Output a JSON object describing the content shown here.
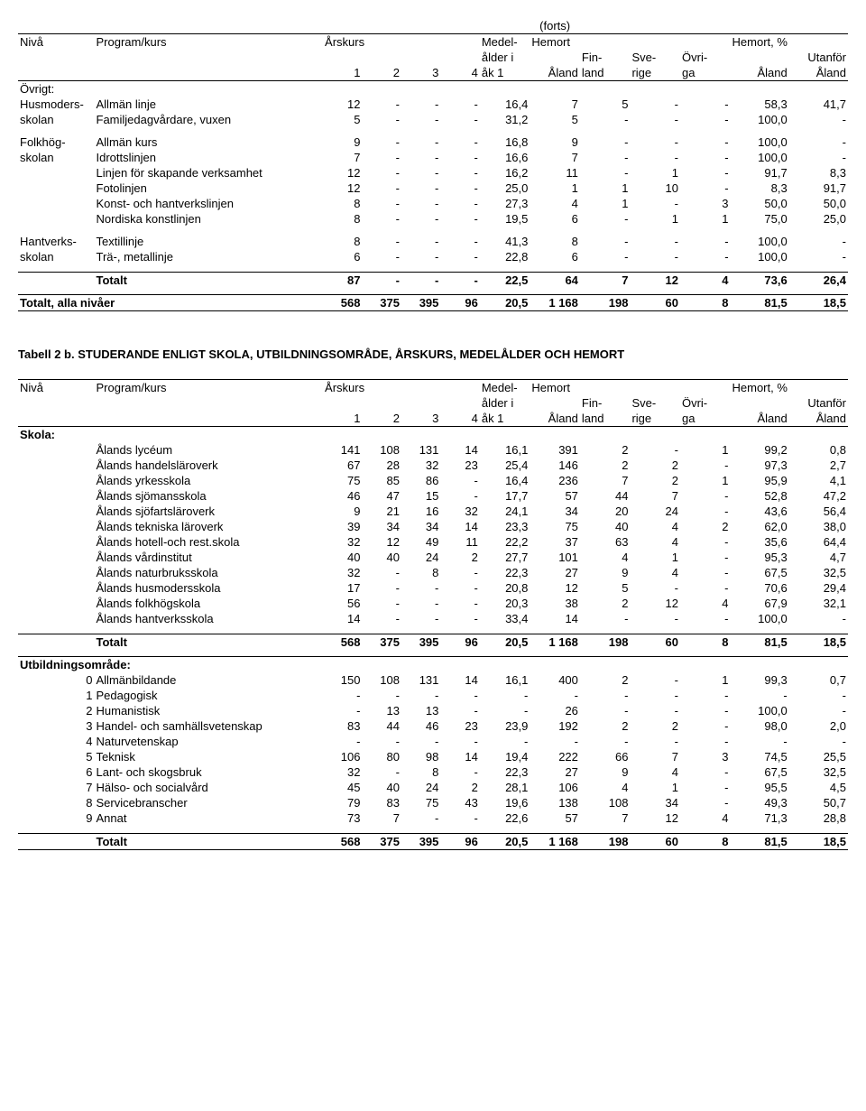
{
  "forts": "(forts)",
  "hdr": {
    "niva": "Nivå",
    "program": "Program/kurs",
    "arskurs": "Årskurs",
    "medel": "Medel-",
    "hemort": "Hemort",
    "hemortpct": "Hemort, %",
    "alderi": "ålder i",
    "fin": "Fin-",
    "sve": "Sve-",
    "ovri": "Övri-",
    "utanfor": "Utanför",
    "c1": "1",
    "c2": "2",
    "c3": "3",
    "c4": "4",
    "ak1": "åk 1",
    "aland": "Åland",
    "land": "land",
    "rige": "rige",
    "ga": "ga"
  },
  "table1": {
    "ovrigt_label": "Övrigt:",
    "groups": [
      {
        "niva": [
          "Husmoders-",
          "skolan"
        ],
        "rows": [
          {
            "prog": "Allmän linje",
            "v": [
              "12",
              "-",
              "-",
              "-",
              "16,4",
              "7",
              "5",
              "-",
              "-",
              "58,3",
              "41,7"
            ]
          },
          {
            "prog": "Familjedagvårdare, vuxen",
            "v": [
              "5",
              "-",
              "-",
              "-",
              "31,2",
              "5",
              "-",
              "-",
              "-",
              "100,0",
              "-"
            ]
          }
        ]
      },
      {
        "niva": [
          "Folkhög-",
          "skolan"
        ],
        "rows": [
          {
            "prog": "Allmän kurs",
            "v": [
              "9",
              "-",
              "-",
              "-",
              "16,8",
              "9",
              "-",
              "-",
              "-",
              "100,0",
              "-"
            ]
          },
          {
            "prog": "Idrottslinjen",
            "v": [
              "7",
              "-",
              "-",
              "-",
              "16,6",
              "7",
              "-",
              "-",
              "-",
              "100,0",
              "-"
            ]
          },
          {
            "prog": "Linjen för skapande verksamhet",
            "v": [
              "12",
              "-",
              "-",
              "-",
              "16,2",
              "11",
              "-",
              "1",
              "-",
              "91,7",
              "8,3"
            ]
          },
          {
            "prog": "Fotolinjen",
            "v": [
              "12",
              "-",
              "-",
              "-",
              "25,0",
              "1",
              "1",
              "10",
              "-",
              "8,3",
              "91,7"
            ]
          },
          {
            "prog": "Konst- och hantverkslinjen",
            "v": [
              "8",
              "-",
              "-",
              "-",
              "27,3",
              "4",
              "1",
              "-",
              "3",
              "50,0",
              "50,0"
            ]
          },
          {
            "prog": "Nordiska konstlinjen",
            "v": [
              "8",
              "-",
              "-",
              "-",
              "19,5",
              "6",
              "-",
              "1",
              "1",
              "75,0",
              "25,0"
            ]
          }
        ]
      },
      {
        "niva": [
          "Hantverks-",
          "skolan"
        ],
        "rows": [
          {
            "prog": "Textillinje",
            "v": [
              "8",
              "-",
              "-",
              "-",
              "41,3",
              "8",
              "-",
              "-",
              "-",
              "100,0",
              "-"
            ]
          },
          {
            "prog": "Trä-, metallinje",
            "v": [
              "6",
              "-",
              "-",
              "-",
              "22,8",
              "6",
              "-",
              "-",
              "-",
              "100,0",
              "-"
            ]
          }
        ]
      }
    ],
    "totalt_label": "Totalt",
    "totalt": [
      "87",
      "-",
      "-",
      "-",
      "22,5",
      "64",
      "7",
      "12",
      "4",
      "73,6",
      "26,4"
    ],
    "alla_label": "Totalt, alla nivåer",
    "alla": [
      "568",
      "375",
      "395",
      "96",
      "20,5",
      "1 168",
      "198",
      "60",
      "8",
      "81,5",
      "18,5"
    ]
  },
  "table2": {
    "title": "Tabell 2 b. STUDERANDE ENLIGT SKOLA, UTBILDNINGSOMRÅDE, ÅRSKURS, MEDELÅLDER OCH HEMORT",
    "skola_label": "Skola:",
    "skola_rows": [
      {
        "prog": "Ålands lycéum",
        "v": [
          "141",
          "108",
          "131",
          "14",
          "16,1",
          "391",
          "2",
          "-",
          "1",
          "99,2",
          "0,8"
        ]
      },
      {
        "prog": "Ålands handelsläroverk",
        "v": [
          "67",
          "28",
          "32",
          "23",
          "25,4",
          "146",
          "2",
          "2",
          "-",
          "97,3",
          "2,7"
        ]
      },
      {
        "prog": "Ålands yrkesskola",
        "v": [
          "75",
          "85",
          "86",
          "-",
          "16,4",
          "236",
          "7",
          "2",
          "1",
          "95,9",
          "4,1"
        ]
      },
      {
        "prog": "Ålands sjömansskola",
        "v": [
          "46",
          "47",
          "15",
          "-",
          "17,7",
          "57",
          "44",
          "7",
          "-",
          "52,8",
          "47,2"
        ]
      },
      {
        "prog": "Ålands sjöfartsläroverk",
        "v": [
          "9",
          "21",
          "16",
          "32",
          "24,1",
          "34",
          "20",
          "24",
          "-",
          "43,6",
          "56,4"
        ]
      },
      {
        "prog": "Ålands tekniska läroverk",
        "v": [
          "39",
          "34",
          "34",
          "14",
          "23,3",
          "75",
          "40",
          "4",
          "2",
          "62,0",
          "38,0"
        ]
      },
      {
        "prog": "Ålands hotell-och rest.skola",
        "v": [
          "32",
          "12",
          "49",
          "11",
          "22,2",
          "37",
          "63",
          "4",
          "-",
          "35,6",
          "64,4"
        ]
      },
      {
        "prog": "Ålands vårdinstitut",
        "v": [
          "40",
          "40",
          "24",
          "2",
          "27,7",
          "101",
          "4",
          "1",
          "-",
          "95,3",
          "4,7"
        ]
      },
      {
        "prog": "Ålands naturbruksskola",
        "v": [
          "32",
          "-",
          "8",
          "-",
          "22,3",
          "27",
          "9",
          "4",
          "-",
          "67,5",
          "32,5"
        ]
      },
      {
        "prog": "Ålands husmodersskola",
        "v": [
          "17",
          "-",
          "-",
          "-",
          "20,8",
          "12",
          "5",
          "-",
          "-",
          "70,6",
          "29,4"
        ]
      },
      {
        "prog": "Ålands folkhögskola",
        "v": [
          "56",
          "-",
          "-",
          "-",
          "20,3",
          "38",
          "2",
          "12",
          "4",
          "67,9",
          "32,1"
        ]
      },
      {
        "prog": "Ålands hantverksskola",
        "v": [
          "14",
          "-",
          "-",
          "-",
          "33,4",
          "14",
          "-",
          "-",
          "-",
          "100,0",
          "-"
        ]
      }
    ],
    "skola_totalt": [
      "568",
      "375",
      "395",
      "96",
      "20,5",
      "1 168",
      "198",
      "60",
      "8",
      "81,5",
      "18,5"
    ],
    "omrade_label": "Utbildningsområde:",
    "omrade_rows": [
      {
        "n": "0",
        "prog": "Allmänbildande",
        "v": [
          "150",
          "108",
          "131",
          "14",
          "16,1",
          "400",
          "2",
          "-",
          "1",
          "99,3",
          "0,7"
        ]
      },
      {
        "n": "1",
        "prog": "Pedagogisk",
        "v": [
          "-",
          "-",
          "-",
          "-",
          "-",
          "-",
          "-",
          "-",
          "-",
          "-",
          "-"
        ]
      },
      {
        "n": "2",
        "prog": "Humanistisk",
        "v": [
          "-",
          "13",
          "13",
          "-",
          "-",
          "26",
          "-",
          "-",
          "-",
          "100,0",
          "-"
        ]
      },
      {
        "n": "3",
        "prog": "Handel- och samhällsvetenskap",
        "v": [
          "83",
          "44",
          "46",
          "23",
          "23,9",
          "192",
          "2",
          "2",
          "-",
          "98,0",
          "2,0"
        ]
      },
      {
        "n": "4",
        "prog": "Naturvetenskap",
        "v": [
          "-",
          "-",
          "-",
          "-",
          "-",
          "-",
          "-",
          "-",
          "-",
          "-",
          "-"
        ]
      },
      {
        "n": "5",
        "prog": "Teknisk",
        "v": [
          "106",
          "80",
          "98",
          "14",
          "19,4",
          "222",
          "66",
          "7",
          "3",
          "74,5",
          "25,5"
        ]
      },
      {
        "n": "6",
        "prog": "Lant- och skogsbruk",
        "v": [
          "32",
          "-",
          "8",
          "-",
          "22,3",
          "27",
          "9",
          "4",
          "-",
          "67,5",
          "32,5"
        ]
      },
      {
        "n": "7",
        "prog": "Hälso- och socialvård",
        "v": [
          "45",
          "40",
          "24",
          "2",
          "28,1",
          "106",
          "4",
          "1",
          "-",
          "95,5",
          "4,5"
        ]
      },
      {
        "n": "8",
        "prog": "Servicebranscher",
        "v": [
          "79",
          "83",
          "75",
          "43",
          "19,6",
          "138",
          "108",
          "34",
          "-",
          "49,3",
          "50,7"
        ]
      },
      {
        "n": "9",
        "prog": "Annat",
        "v": [
          "73",
          "7",
          "-",
          "-",
          "22,6",
          "57",
          "7",
          "12",
          "4",
          "71,3",
          "28,8"
        ]
      }
    ],
    "omrade_totalt": [
      "568",
      "375",
      "395",
      "96",
      "20,5",
      "1 168",
      "198",
      "60",
      "8",
      "81,5",
      "18,5"
    ]
  }
}
